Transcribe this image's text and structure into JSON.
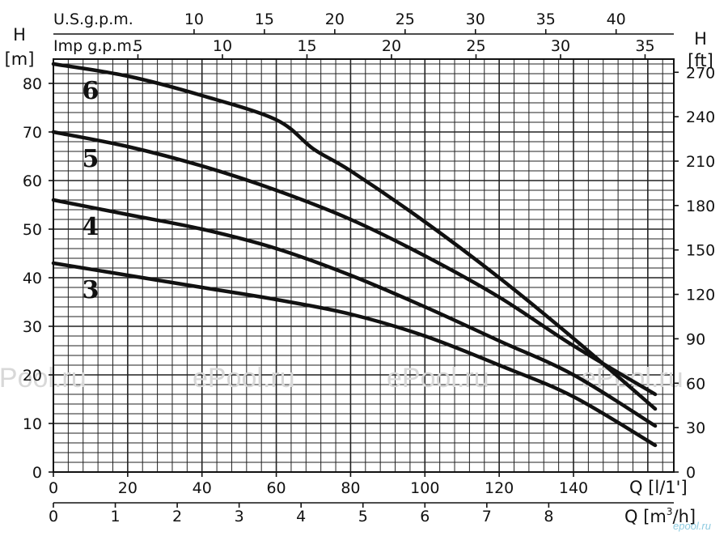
{
  "chart_data": {
    "type": "line",
    "left_axis": {
      "title_top": "H",
      "title_bottom": "[m]",
      "range": [
        0,
        85
      ],
      "ticks": [
        0,
        10,
        20,
        30,
        40,
        50,
        60,
        70,
        80
      ]
    },
    "right_axis": {
      "title_top": "H",
      "title_bottom": "[ft]",
      "range": [
        0,
        278.9
      ],
      "ticks": [
        0,
        30,
        60,
        90,
        120,
        150,
        180,
        210,
        240,
        270
      ]
    },
    "bottom_axis_lpm": {
      "label": "Q [l/1']",
      "range": [
        0,
        167
      ],
      "ticks": [
        0,
        20,
        40,
        60,
        80,
        100,
        120,
        140
      ]
    },
    "bottom_axis_m3h": {
      "label": "Q [m",
      "label_sup": "3",
      "label_tail": "/h]",
      "range": [
        0,
        10.02
      ],
      "ticks": [
        0,
        1,
        2,
        3,
        4,
        5,
        6,
        7,
        8
      ]
    },
    "top_axis_usgpm": {
      "label": "U.S.g.p.m.",
      "range": [
        0,
        44.1
      ],
      "ticks": [
        10,
        15,
        20,
        25,
        30,
        35,
        40
      ]
    },
    "top_axis_impgpm": {
      "label": "Imp g.p.m.",
      "range": [
        0,
        36.7
      ],
      "ticks": [
        5,
        10,
        15,
        20,
        25,
        30,
        35
      ]
    },
    "grid": true,
    "x_unit": "l/min",
    "y_unit": "m",
    "series": [
      {
        "name": "6",
        "x": [
          0,
          20,
          40,
          60,
          70,
          80,
          100,
          120,
          140,
          162
        ],
        "y": [
          84,
          81.5,
          77.5,
          72.5,
          66.5,
          62,
          51.5,
          40,
          27.5,
          13
        ]
      },
      {
        "name": "5",
        "x": [
          0,
          20,
          40,
          60,
          80,
          100,
          120,
          140,
          162
        ],
        "y": [
          70,
          67,
          63,
          58,
          52,
          44.5,
          36,
          26,
          16
        ]
      },
      {
        "name": "4",
        "x": [
          0,
          20,
          40,
          60,
          80,
          100,
          120,
          140,
          162
        ],
        "y": [
          56,
          53,
          50,
          46,
          40.5,
          34,
          27,
          20,
          9.5
        ]
      },
      {
        "name": "3",
        "x": [
          0,
          20,
          40,
          60,
          80,
          100,
          120,
          140,
          162
        ],
        "y": [
          43,
          40.5,
          38,
          35.5,
          32.5,
          28,
          22,
          15.5,
          5.5
        ]
      }
    ]
  },
  "watermarks": [
    "ePool.ru",
    "ePool.ru",
    "ePool.ru",
    "ePool.ru"
  ],
  "logo": "epool.ru"
}
